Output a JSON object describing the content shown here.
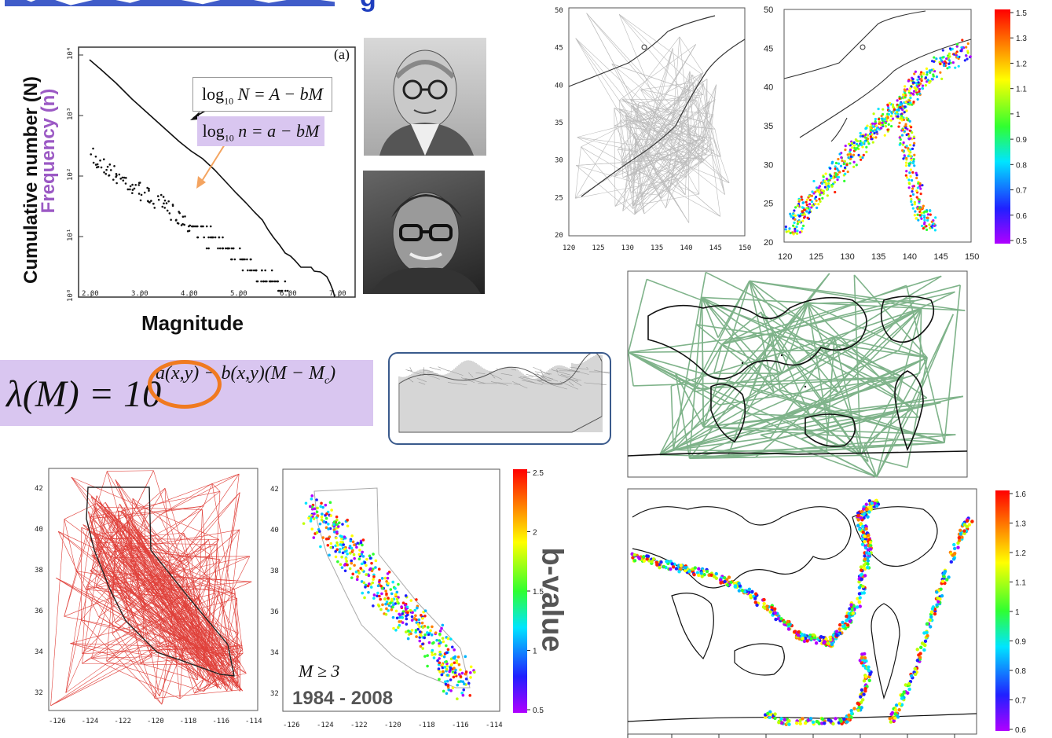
{
  "slide": {
    "title_fragment": "g",
    "bvalue_label": "b-value",
    "magnitude_condition": "M ≥ 3",
    "years": "1984 - 2008"
  },
  "gr_plot": {
    "panel_label": "(a)",
    "xlabel": "Magnitude",
    "ylabel_cumulative": "Cumulative number (N)",
    "ylabel_frequency": "Frequency (n)",
    "xticks": [
      "2.00",
      "3.00",
      "4.00",
      "5.00",
      "6.00",
      "7.00"
    ],
    "yticks": [
      "10⁴",
      "10³",
      "10²",
      "10¹",
      "10⁰"
    ],
    "law_cumulative": {
      "lhs_log": "log",
      "lhs_sub": "10",
      "text": "N = A − bM"
    },
    "law_frequency": {
      "lhs_log": "log",
      "lhs_sub": "10",
      "text": "n = a − bM"
    }
  },
  "formula": {
    "lhs": "λ(M) = 10",
    "exponent": "a(x,y) − b(x,y)(M − M",
    "subscript": "c",
    "close": ")"
  },
  "japan_grid": {
    "xticks": [
      "120",
      "125",
      "130",
      "135",
      "140",
      "145",
      "150"
    ],
    "yticks": [
      "50",
      "45",
      "40",
      "35",
      "30",
      "25",
      "20"
    ]
  },
  "japan_b": {
    "xticks": [
      "120",
      "125",
      "130",
      "135",
      "140",
      "145",
      "150"
    ],
    "yticks": [
      "50",
      "45",
      "40",
      "35",
      "30",
      "25",
      "20"
    ],
    "colorbar": [
      "1.5",
      "1.3",
      "1.2",
      "1.1",
      "1",
      "0.9",
      "0.8",
      "0.7",
      "0.6",
      "0.5"
    ]
  },
  "world_b": {
    "colorbar": [
      "1.6",
      "1.3",
      "1.2",
      "1.1",
      "1",
      "0.9",
      "0.8",
      "0.7",
      "0.6"
    ]
  },
  "ca_grid": {
    "xticks": [
      "-126",
      "-124",
      "-122",
      "-120",
      "-118",
      "-116",
      "-114"
    ],
    "yticks": [
      "42",
      "40",
      "38",
      "36",
      "34",
      "32"
    ]
  },
  "ca_b": {
    "xticks": [
      "-126",
      "-124",
      "-122",
      "-120",
      "-118",
      "-116",
      "-114"
    ],
    "yticks": [
      "42",
      "40",
      "38",
      "36",
      "34",
      "32"
    ],
    "colorbar": [
      "2.5",
      "2",
      "1.5",
      "1",
      "0.5"
    ]
  },
  "colors": {
    "title_blue": "#1f3fbf",
    "purple_text": "#9b59c4",
    "lavender_fill": "#d9c6f0",
    "orange": "#f07a20",
    "arrow_orange": "#f4a460",
    "green_grid": "#7fb38a",
    "red_grid": "#e0403a",
    "box_blue": "#3a5a8c"
  }
}
